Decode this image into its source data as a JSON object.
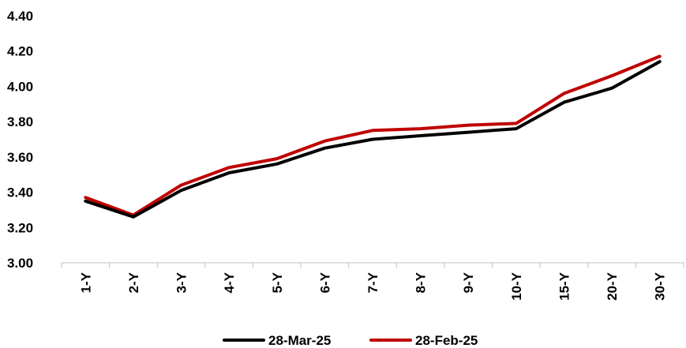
{
  "chart_data": {
    "type": "line",
    "title": "",
    "xlabel": "",
    "ylabel": "",
    "categories": [
      "1-Y",
      "2-Y",
      "3-Y",
      "4-Y",
      "5-Y",
      "6-Y",
      "7-Y",
      "8-Y",
      "9-Y",
      "10-Y",
      "15-Y",
      "20-Y",
      "30-Y"
    ],
    "ylim": [
      3.0,
      4.4
    ],
    "yticks": [
      "3.00",
      "3.20",
      "3.40",
      "3.60",
      "3.80",
      "4.00",
      "4.20",
      "4.40"
    ],
    "grid": false,
    "legend_position": "bottom",
    "series": [
      {
        "name": "28-Mar-25",
        "color": "#000000",
        "values": [
          3.35,
          3.26,
          3.41,
          3.51,
          3.56,
          3.65,
          3.7,
          3.72,
          3.74,
          3.76,
          3.91,
          3.99,
          4.14
        ]
      },
      {
        "name": "28-Feb-25",
        "color": "#C00000",
        "values": [
          3.37,
          3.27,
          3.44,
          3.54,
          3.59,
          3.69,
          3.75,
          3.76,
          3.78,
          3.79,
          3.96,
          4.06,
          4.17
        ]
      }
    ]
  }
}
